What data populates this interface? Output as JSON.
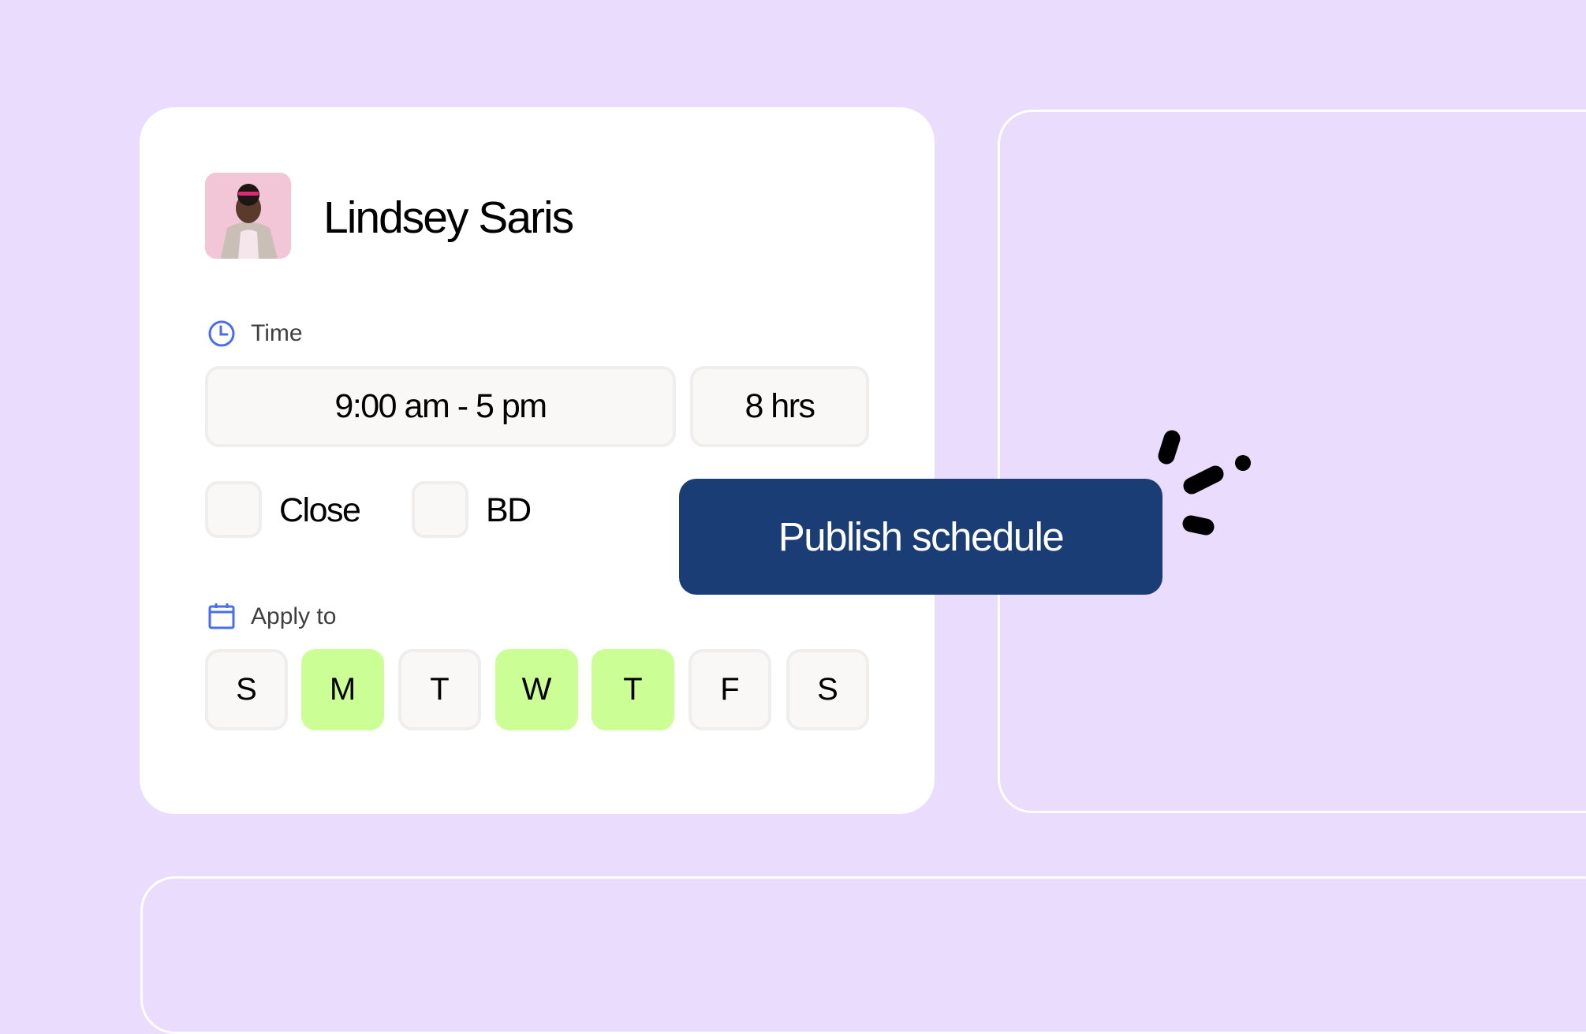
{
  "employee": {
    "name": "Lindsey Saris"
  },
  "time": {
    "label": "Time",
    "icon": "clock-icon",
    "range": "9:00 am - 5 pm",
    "duration": "8 hrs"
  },
  "options": [
    {
      "label": "Close",
      "checked": false
    },
    {
      "label": "BD",
      "checked": false
    }
  ],
  "apply": {
    "label": "Apply to",
    "icon": "calendar-icon",
    "days": [
      {
        "label": "S",
        "selected": false
      },
      {
        "label": "M",
        "selected": true
      },
      {
        "label": "T",
        "selected": false
      },
      {
        "label": "W",
        "selected": true
      },
      {
        "label": "T",
        "selected": true
      },
      {
        "label": "F",
        "selected": false
      },
      {
        "label": "S",
        "selected": false
      }
    ]
  },
  "publish": {
    "label": "Publish schedule"
  },
  "colors": {
    "background": "#e9dcfc",
    "accent": "#1b3d75",
    "selected_day": "#cbfe94",
    "icon_blue": "#4a6cf0"
  }
}
